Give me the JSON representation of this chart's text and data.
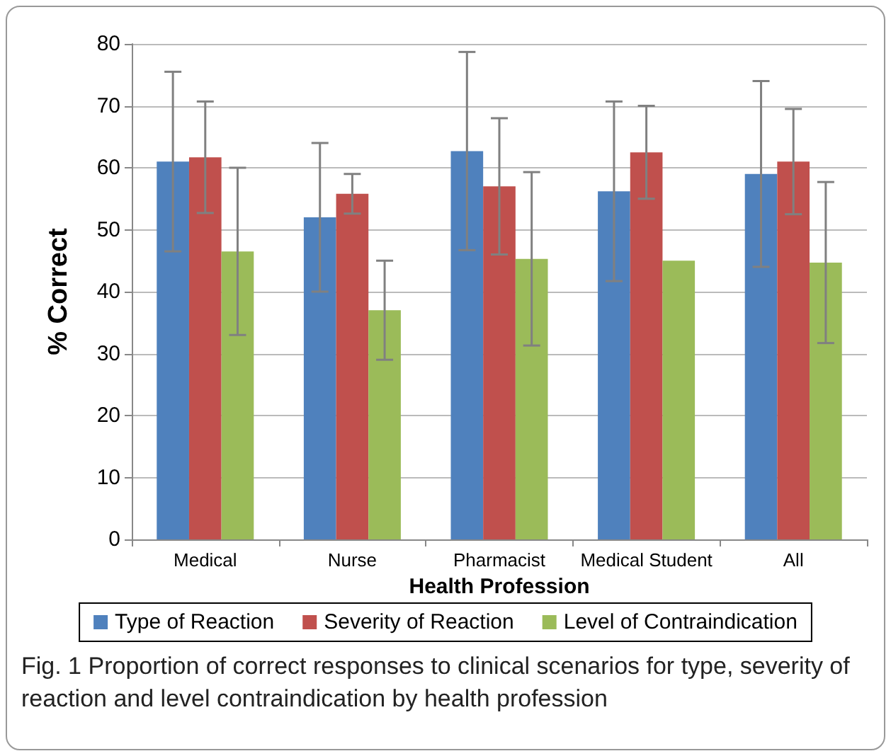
{
  "chart_data": {
    "type": "bar",
    "xlabel": "Health Profession",
    "ylabel": "% Correct",
    "categories": [
      "Medical",
      "Nurse",
      "Pharmacist",
      "Medical Student",
      "All"
    ],
    "series": [
      {
        "name": "Type of Reaction",
        "color": "#4f81bd",
        "values": [
          61,
          52,
          62.7,
          56.2,
          59
        ],
        "errors": [
          14.5,
          12,
          16,
          14.5,
          15
        ]
      },
      {
        "name": "Severity of Reaction",
        "color": "#c0504d",
        "values": [
          61.7,
          55.8,
          57,
          62.5,
          61
        ],
        "errors": [
          9,
          3.2,
          11,
          7.5,
          8.5
        ]
      },
      {
        "name": "Level of Contraindication",
        "color": "#9bbb59",
        "values": [
          46.5,
          37,
          45.3,
          45,
          44.7
        ],
        "errors": [
          13.5,
          8,
          14,
          null,
          13
        ]
      }
    ],
    "ylim": [
      0,
      80
    ],
    "yticks": [
      0,
      10,
      20,
      30,
      40,
      50,
      60,
      70,
      80
    ],
    "grid": "y",
    "legend": "bottom",
    "annotations": [
      "Fig. 1  Proportion of correct responses to clinical scenarios for type, severity of reaction and level contraindication by health profession"
    ]
  }
}
